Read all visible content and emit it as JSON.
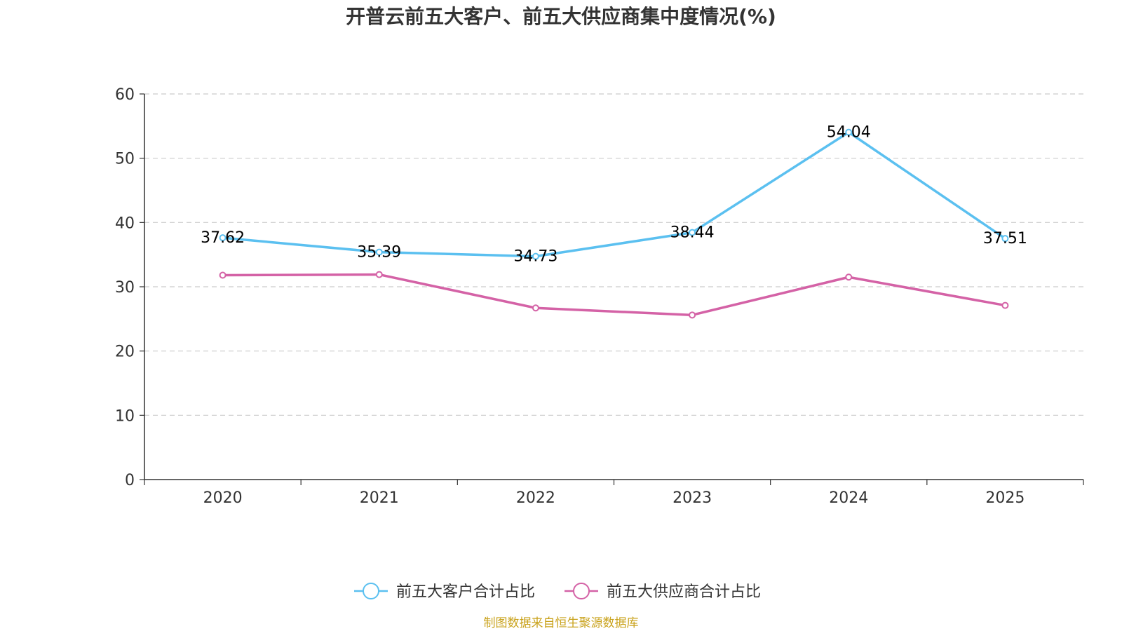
{
  "chart_data": {
    "type": "line",
    "title": "开普云前五大客户、前五大供应商集中度情况(%)",
    "categories": [
      "2020",
      "2021",
      "2022",
      "2023",
      "2024",
      "2025"
    ],
    "ylim": [
      0,
      60
    ],
    "yticks": [
      0,
      10,
      20,
      30,
      40,
      50,
      60
    ],
    "grid": true,
    "legend_position": "bottom",
    "series": [
      {
        "name": "前五大客户合计占比",
        "color": "#5bc0f0",
        "values": [
          37.62,
          35.39,
          34.73,
          38.44,
          54.04,
          37.51
        ],
        "labels": [
          "37.62",
          "35.39",
          "34.73",
          "38.44",
          "54.04",
          "37.51"
        ],
        "show_labels": true
      },
      {
        "name": "前五大供应商合计占比",
        "color": "#d462a6",
        "values": [
          31.8,
          31.9,
          26.7,
          25.6,
          31.5,
          27.1
        ],
        "show_labels": false
      }
    ],
    "source": "制图数据来自恒生聚源数据库"
  }
}
